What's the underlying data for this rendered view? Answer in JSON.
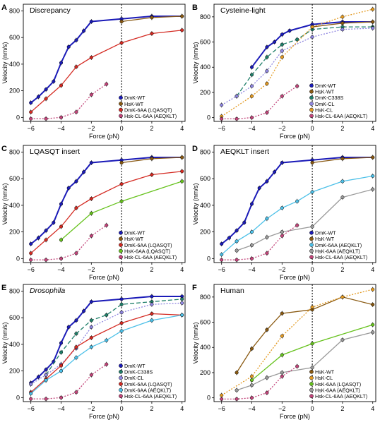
{
  "colors": {
    "DmK-WT": "#1b1bb8",
    "HsK-WT": "#8a5a12",
    "DmK-C338S": "#1f7f6a",
    "DmK-CL": "#8f86e0",
    "HsK-CL": "#e39a22",
    "DmK-6AA (LQASQT)": "#d42a22",
    "DmK-6AA (AEQKLT)": "#4cc0e8",
    "HsK-6AA (LQASQT)": "#66c21d",
    "HsK-6AA (AEQKLT)": "#9a9a9a",
    "Hsk-CL-6AA (AEQKLT)": "#c2457a"
  },
  "chart_data": [
    {
      "type": "scatter",
      "panel": "A",
      "title": "Discrepancy",
      "xlabel": "Force (pN)",
      "ylabel": "Velocity (nm/s)",
      "xlim": [
        -6.5,
        4.2
      ],
      "ylim": [
        -30,
        850
      ],
      "xticks": [
        -6,
        -4,
        -2,
        0,
        2,
        4
      ],
      "yticks": [
        0,
        200,
        400,
        600,
        800
      ],
      "legend_position": "bottom-right",
      "series": [
        {
          "name": "DmK-WT",
          "fit": "solid",
          "x": [
            -6,
            -5.5,
            -5,
            -4.5,
            -4,
            -3.5,
            -3,
            -2.5,
            -2,
            0,
            2,
            4
          ],
          "y": [
            110,
            155,
            210,
            270,
            410,
            530,
            580,
            650,
            720,
            740,
            760,
            760
          ]
        },
        {
          "name": "HsK-WT",
          "fit": "solid",
          "x": [
            0,
            2,
            4
          ],
          "y": [
            720,
            750,
            760
          ]
        },
        {
          "name": "DmK-6AA (LQASQT)",
          "fit": "solid",
          "x": [
            -6,
            -5,
            -4,
            -3,
            -2,
            0,
            2,
            4
          ],
          "y": [
            40,
            140,
            240,
            380,
            450,
            560,
            630,
            655
          ]
        },
        {
          "name": "Hsk-CL-6AA (AEQKLT)",
          "fit": "dotted",
          "x": [
            -6,
            -5,
            -4,
            -3,
            -2,
            -1
          ],
          "y": [
            -10,
            -10,
            0,
            40,
            170,
            250
          ]
        }
      ]
    },
    {
      "type": "scatter",
      "panel": "B",
      "title": "Cysteine-light",
      "xlabel": "Force (pN)",
      "ylabel": "Velocity (nm/s)",
      "xlim": [
        -6.5,
        4.2
      ],
      "ylim": [
        -30,
        900
      ],
      "xticks": [
        -6,
        -4,
        -2,
        0,
        2,
        4
      ],
      "yticks": [
        0,
        200,
        400,
        600,
        800
      ],
      "legend_position": "bottom-right",
      "series": [
        {
          "name": "DmK-WT",
          "fit": "solid",
          "x": [
            -4,
            -3,
            -2.5,
            -2,
            -1.5,
            0,
            2,
            4
          ],
          "y": [
            400,
            560,
            600,
            660,
            690,
            740,
            760,
            760
          ]
        },
        {
          "name": "HsK-WT",
          "fit": "solid",
          "x": [
            0,
            2,
            4
          ],
          "y": [
            720,
            750,
            760
          ]
        },
        {
          "name": "DmK-C338S",
          "fit": "dashed",
          "x": [
            -5,
            -4,
            -3,
            -2,
            -1,
            0,
            2,
            4
          ],
          "y": [
            170,
            340,
            480,
            580,
            620,
            700,
            720,
            720
          ]
        },
        {
          "name": "DmK-CL",
          "fit": "dotted",
          "x": [
            -6,
            -5,
            -4,
            -3,
            -2,
            0,
            2,
            4
          ],
          "y": [
            100,
            170,
            250,
            370,
            530,
            640,
            700,
            710
          ]
        },
        {
          "name": "HsK-CL",
          "fit": "dotted",
          "x": [
            -6,
            -4,
            -3,
            -2,
            0,
            2,
            4
          ],
          "y": [
            10,
            170,
            270,
            480,
            720,
            800,
            860
          ]
        },
        {
          "name": "Hsk-CL-6AA (AEQKLT)",
          "fit": "dotted",
          "x": [
            -6,
            -5,
            -4,
            -3,
            -2,
            -1
          ],
          "y": [
            -10,
            -10,
            0,
            40,
            170,
            250
          ]
        }
      ]
    },
    {
      "type": "scatter",
      "panel": "C",
      "title": "LQASQT insert",
      "xlabel": "Force (pN)",
      "ylabel": "Velocity (nm/s)",
      "xlim": [
        -6.5,
        4.2
      ],
      "ylim": [
        -30,
        850
      ],
      "xticks": [
        -6,
        -4,
        -2,
        0,
        2,
        4
      ],
      "yticks": [
        0,
        200,
        400,
        600,
        800
      ],
      "legend_position": "bottom-right",
      "series": [
        {
          "name": "DmK-WT",
          "fit": "solid",
          "x": [
            -6,
            -5.5,
            -5,
            -4.5,
            -4,
            -3.5,
            -3,
            -2.5,
            -2,
            0,
            2,
            4
          ],
          "y": [
            110,
            155,
            210,
            270,
            410,
            530,
            580,
            650,
            720,
            740,
            760,
            760
          ]
        },
        {
          "name": "HsK-WT",
          "fit": "solid",
          "x": [
            0,
            2,
            4
          ],
          "y": [
            720,
            750,
            760
          ]
        },
        {
          "name": "DmK-6AA (LQASQT)",
          "fit": "solid",
          "x": [
            -6,
            -5,
            -4,
            -3,
            -2,
            0,
            2,
            4
          ],
          "y": [
            40,
            140,
            240,
            380,
            450,
            560,
            630,
            655
          ]
        },
        {
          "name": "HsK-6AA (LQASQT)",
          "fit": "solid",
          "x": [
            -4,
            -2,
            0,
            4
          ],
          "y": [
            140,
            340,
            430,
            580
          ]
        },
        {
          "name": "Hsk-CL-6AA (AEQKLT)",
          "fit": "dotted",
          "x": [
            -6,
            -5,
            -4,
            -3,
            -2,
            -1
          ],
          "y": [
            -10,
            -10,
            0,
            40,
            170,
            250
          ]
        }
      ]
    },
    {
      "type": "scatter",
      "panel": "D",
      "title": "AEQKLT insert",
      "xlabel": "Force (pN)",
      "ylabel": "Velocity (nm/s)",
      "xlim": [
        -6.5,
        4.2
      ],
      "ylim": [
        -30,
        850
      ],
      "xticks": [
        -6,
        -4,
        -2,
        0,
        2,
        4
      ],
      "yticks": [
        0,
        200,
        400,
        600,
        800
      ],
      "legend_position": "bottom-right",
      "series": [
        {
          "name": "DmK-WT",
          "fit": "solid",
          "x": [
            -6,
            -5.5,
            -5,
            -4.5,
            -4,
            -3.5,
            -3,
            -2.5,
            -2,
            0,
            2,
            4
          ],
          "y": [
            110,
            155,
            210,
            270,
            410,
            530,
            580,
            650,
            720,
            740,
            760,
            760
          ]
        },
        {
          "name": "HsK-WT",
          "fit": "solid",
          "x": [
            0,
            2,
            4
          ],
          "y": [
            720,
            750,
            760
          ]
        },
        {
          "name": "DmK-6AA (AEQKLT)",
          "fit": "solid",
          "x": [
            -6,
            -5,
            -4,
            -3,
            -2,
            -1,
            0,
            2,
            4
          ],
          "y": [
            30,
            130,
            200,
            300,
            380,
            430,
            500,
            580,
            620
          ]
        },
        {
          "name": "HsK-6AA (AEQKLT)",
          "fit": "solid",
          "x": [
            -5,
            -4,
            -3,
            -2,
            0,
            2,
            4
          ],
          "y": [
            60,
            100,
            160,
            200,
            240,
            460,
            520
          ]
        },
        {
          "name": "Hsk-CL-6AA (AEQKLT)",
          "fit": "dotted",
          "x": [
            -6,
            -5,
            -4,
            -3,
            -2,
            -1
          ],
          "y": [
            -10,
            -10,
            0,
            40,
            170,
            250
          ]
        }
      ]
    },
    {
      "type": "scatter",
      "panel": "E",
      "title": "Drosophila",
      "xlabel": "Force (pN)",
      "ylabel": "Velocity (nm/s)",
      "xlim": [
        -6.5,
        4.2
      ],
      "ylim": [
        -30,
        850
      ],
      "xticks": [
        -6,
        -4,
        -2,
        0,
        2,
        4
      ],
      "yticks": [
        0,
        200,
        400,
        600,
        800
      ],
      "legend_position": "bottom-right",
      "series": [
        {
          "name": "DmK-WT",
          "fit": "solid",
          "x": [
            -6,
            -5.5,
            -5,
            -4.5,
            -4,
            -3.5,
            -3,
            -2.5,
            -2,
            0,
            2,
            4
          ],
          "y": [
            110,
            155,
            210,
            270,
            410,
            530,
            580,
            650,
            720,
            740,
            760,
            760
          ]
        },
        {
          "name": "DmK-C338S",
          "fit": "dashed",
          "x": [
            -5,
            -4,
            -3,
            -2,
            -1,
            0,
            2,
            4
          ],
          "y": [
            170,
            340,
            480,
            580,
            620,
            700,
            720,
            740
          ]
        },
        {
          "name": "DmK-CL",
          "fit": "dotted",
          "x": [
            -6,
            -5,
            -4,
            -3,
            -2,
            0,
            2,
            4
          ],
          "y": [
            100,
            170,
            250,
            370,
            530,
            640,
            700,
            710
          ]
        },
        {
          "name": "DmK-6AA (LQASQT)",
          "fit": "solid",
          "x": [
            -6,
            -5,
            -4,
            -3,
            -2,
            0,
            2,
            4
          ],
          "y": [
            40,
            140,
            240,
            380,
            450,
            560,
            630,
            620
          ]
        },
        {
          "name": "DmK-6AA (AEQKLT)",
          "fit": "solid",
          "x": [
            -6,
            -5,
            -4,
            -3,
            -2,
            -1,
            0,
            2,
            4
          ],
          "y": [
            30,
            130,
            200,
            300,
            380,
            430,
            500,
            580,
            620
          ]
        },
        {
          "name": "Hsk-CL-6AA (AEQKLT)",
          "fit": "dotted",
          "x": [
            -6,
            -5,
            -4,
            -3,
            -2,
            -1
          ],
          "y": [
            -10,
            -10,
            0,
            40,
            170,
            250
          ]
        }
      ]
    },
    {
      "type": "scatter",
      "panel": "F",
      "title": "Human",
      "xlabel": "Force (pN)",
      "ylabel": "Velocity (nm/s)",
      "xlim": [
        -6.5,
        4.2
      ],
      "ylim": [
        -30,
        900
      ],
      "xticks": [
        -6,
        -4,
        -2,
        0,
        2,
        4
      ],
      "yticks": [
        0,
        200,
        400,
        600,
        800
      ],
      "legend_position": "bottom-right",
      "series": [
        {
          "name": "HsK-WT",
          "fit": "solid",
          "x": [
            -5,
            -4,
            -3,
            -2,
            0,
            2,
            4
          ],
          "y": [
            200,
            390,
            540,
            670,
            700,
            800,
            740
          ]
        },
        {
          "name": "HsK-CL",
          "fit": "dotted",
          "x": [
            -6,
            -4,
            -2,
            0,
            2,
            4
          ],
          "y": [
            20,
            170,
            490,
            720,
            800,
            860
          ]
        },
        {
          "name": "HsK-6AA (LQASQT)",
          "fit": "solid",
          "x": [
            -4,
            -2,
            0,
            4
          ],
          "y": [
            140,
            340,
            430,
            580
          ]
        },
        {
          "name": "HsK-6AA (AEQKLT)",
          "fit": "solid",
          "x": [
            -5,
            -4,
            -3,
            -2,
            0,
            2,
            4
          ],
          "y": [
            60,
            100,
            160,
            200,
            240,
            460,
            520
          ]
        },
        {
          "name": "Hsk-CL-6AA (AEQKLT)",
          "fit": "dotted",
          "x": [
            -6,
            -5,
            -4,
            -3,
            -2,
            -1
          ],
          "y": [
            -10,
            -10,
            0,
            40,
            170,
            250
          ]
        }
      ]
    }
  ]
}
